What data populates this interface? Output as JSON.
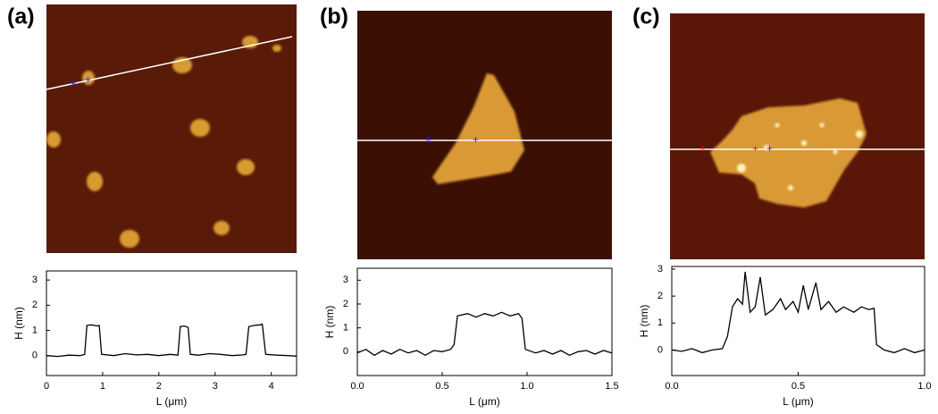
{
  "chart_data": [
    {
      "type": "line",
      "panel_label": "(a)",
      "x_label": "L (μm)",
      "y_label": "H (nm)",
      "color": "#000000",
      "xlim": [
        0,
        4.45
      ],
      "xticks": [
        0,
        1,
        2,
        3,
        4
      ],
      "ylim": [
        -0.79,
        3.36
      ],
      "yticks": [
        0,
        1,
        2,
        3
      ],
      "x": [
        0,
        0.2,
        0.4,
        0.6,
        0.68,
        0.72,
        0.8,
        0.9,
        0.94,
        0.98,
        1.2,
        1.4,
        1.6,
        1.8,
        2.0,
        2.2,
        2.34,
        2.38,
        2.45,
        2.52,
        2.56,
        2.7,
        2.9,
        3.1,
        3.3,
        3.5,
        3.55,
        3.6,
        3.7,
        3.8,
        3.84,
        3.9,
        4.1,
        4.3,
        4.45
      ],
      "values": [
        0,
        -0.03,
        0.02,
        0,
        0.05,
        1.2,
        1.22,
        1.18,
        1.2,
        0.05,
        0,
        0.08,
        0.03,
        0.05,
        0,
        0.05,
        0.02,
        1.15,
        1.18,
        1.12,
        0.05,
        0.02,
        0.08,
        0.05,
        0,
        0.03,
        0.05,
        1.15,
        1.2,
        1.22,
        1.25,
        0.05,
        0.02,
        0,
        -0.02
      ]
    },
    {
      "type": "line",
      "panel_label": "(b)",
      "x_label": "L (μm)",
      "y_label": "H (nm)",
      "color": "#000000",
      "xlim": [
        0,
        1.5
      ],
      "xticks": [
        {
          "value": 0,
          "label": "0.0"
        },
        0.5,
        {
          "value": 1,
          "label": "1.0"
        },
        1.5
      ],
      "ylim": [
        -1.0,
        3.5
      ],
      "yticks": [
        0,
        1,
        2,
        3
      ],
      "x": [
        0,
        0.05,
        0.1,
        0.15,
        0.2,
        0.25,
        0.3,
        0.35,
        0.4,
        0.45,
        0.5,
        0.55,
        0.57,
        0.59,
        0.65,
        0.7,
        0.75,
        0.8,
        0.85,
        0.9,
        0.95,
        0.97,
        0.99,
        1.05,
        1.1,
        1.15,
        1.2,
        1.25,
        1.3,
        1.35,
        1.4,
        1.45,
        1.5
      ],
      "values": [
        -0.05,
        0.1,
        -0.15,
        0.05,
        -0.1,
        0.1,
        -0.05,
        0.05,
        -0.15,
        0.05,
        0,
        0.1,
        0.3,
        1.5,
        1.6,
        1.45,
        1.6,
        1.5,
        1.65,
        1.5,
        1.6,
        1.4,
        0.1,
        -0.05,
        0.05,
        -0.1,
        0.05,
        -0.15,
        0,
        0.05,
        -0.1,
        0.05,
        -0.05
      ]
    },
    {
      "type": "line",
      "panel_label": "(c)",
      "x_label": "L (μm)",
      "y_label": "H (nm)",
      "color": "#000000",
      "xlim": [
        0,
        1.0
      ],
      "xticks": [
        {
          "value": 0,
          "label": "0.0"
        },
        0.5,
        {
          "value": 1,
          "label": "1.0"
        }
      ],
      "ylim": [
        -0.95,
        3.1
      ],
      "yticks": [
        0,
        1,
        2,
        3
      ],
      "x": [
        0,
        0.04,
        0.08,
        0.12,
        0.16,
        0.2,
        0.22,
        0.24,
        0.26,
        0.28,
        0.29,
        0.31,
        0.33,
        0.35,
        0.37,
        0.4,
        0.43,
        0.45,
        0.48,
        0.5,
        0.52,
        0.54,
        0.57,
        0.59,
        0.62,
        0.65,
        0.68,
        0.72,
        0.75,
        0.78,
        0.8,
        0.81,
        0.84,
        0.88,
        0.92,
        0.96,
        1.0
      ],
      "values": [
        0,
        -0.05,
        0.05,
        -0.1,
        0,
        0.05,
        0.5,
        1.6,
        1.9,
        1.7,
        2.9,
        1.4,
        1.6,
        2.7,
        1.3,
        1.5,
        1.9,
        1.5,
        1.8,
        1.4,
        2.4,
        1.5,
        2.5,
        1.5,
        1.8,
        1.4,
        1.6,
        1.4,
        1.6,
        1.5,
        1.55,
        0.2,
        0,
        -0.1,
        0.05,
        -0.1,
        0
      ]
    }
  ]
}
